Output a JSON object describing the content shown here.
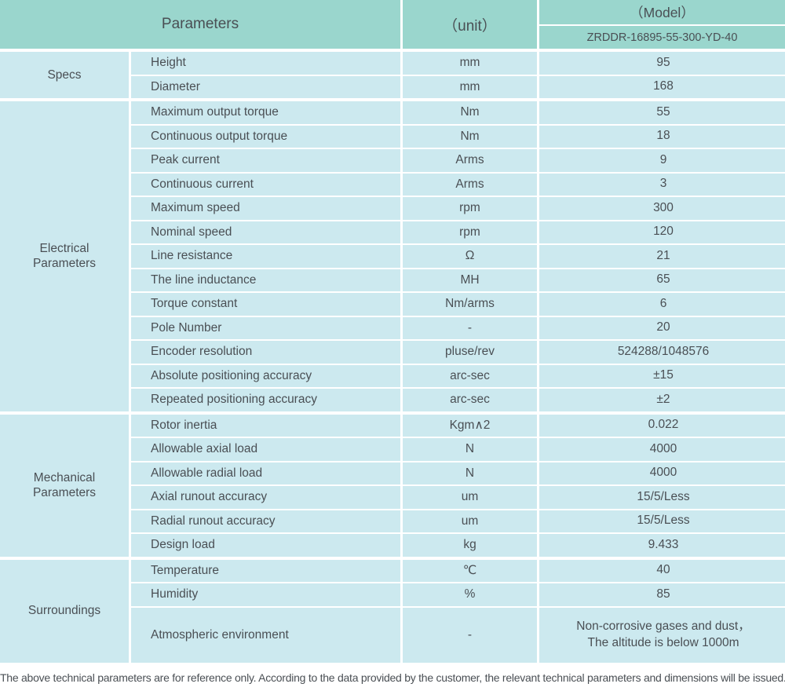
{
  "colors": {
    "header_teal": "#9ad6cd",
    "cell_blue": "#cce9ef",
    "text": "#4a4f54"
  },
  "table": {
    "header": {
      "parameters": "Parameters",
      "unit": "（unit）",
      "model_label": "（Model）",
      "model_value": "ZRDDR-16895-55-300-YD-40"
    },
    "sections": [
      {
        "label": "Specs",
        "rows": [
          {
            "parameter": "Height",
            "unit": "mm",
            "value": "95"
          },
          {
            "parameter": "Diameter",
            "unit": "mm",
            "value": "168"
          }
        ]
      },
      {
        "label": "Electrical\nParameters",
        "rows": [
          {
            "parameter": "Maximum output torque",
            "unit": "Nm",
            "value": "55"
          },
          {
            "parameter": "Continuous output torque",
            "unit": "Nm",
            "value": "18"
          },
          {
            "parameter": "Peak current",
            "unit": "Arms",
            "value": "9"
          },
          {
            "parameter": "Continuous current",
            "unit": "Arms",
            "value": "3"
          },
          {
            "parameter": "Maximum speed",
            "unit": "rpm",
            "value": "300"
          },
          {
            "parameter": "Nominal speed",
            "unit": "rpm",
            "value": "120"
          },
          {
            "parameter": "Line resistance",
            "unit": "Ω",
            "value": "21"
          },
          {
            "parameter": "The line inductance",
            "unit": "MH",
            "value": "65"
          },
          {
            "parameter": "Torque constant",
            "unit": "Nm/arms",
            "value": "6"
          },
          {
            "parameter": "Pole Number",
            "unit": "-",
            "value": "20"
          },
          {
            "parameter": "Encoder resolution",
            "unit": "pluse/rev",
            "value": "524288/1048576"
          },
          {
            "parameter": "Absolute positioning accuracy",
            "unit": "arc-sec",
            "value": "±15"
          },
          {
            "parameter": "Repeated positioning accuracy",
            "unit": "arc-sec",
            "value": "±2"
          }
        ]
      },
      {
        "label": "Mechanical\nParameters",
        "rows": [
          {
            "parameter": "Rotor inertia",
            "unit": "Kgm∧2",
            "value": "0.022"
          },
          {
            "parameter": "Allowable axial load",
            "unit": "N",
            "value": "4000"
          },
          {
            "parameter": "Allowable radial load",
            "unit": "N",
            "value": "4000"
          },
          {
            "parameter": "Axial runout accuracy",
            "unit": "um",
            "value": "15/5/Less"
          },
          {
            "parameter": "Radial runout accuracy",
            "unit": "um",
            "value": "15/5/Less"
          },
          {
            "parameter": "Design load",
            "unit": "kg",
            "value": "9.433"
          }
        ]
      },
      {
        "label": "Surroundings",
        "rows": [
          {
            "parameter": "Temperature",
            "unit": "℃",
            "value": "40"
          },
          {
            "parameter": "Humidity",
            "unit": "%",
            "value": "85"
          },
          {
            "parameter": "Atmospheric environment",
            "unit": "-",
            "value": "Non-corrosive gases and dust，\nThe altitude is below 1000m",
            "tall": true
          }
        ]
      }
    ]
  },
  "footer": {
    "note": "The above technical parameters are for reference only. According to the data provided by the customer, the relevant technical parameters and dimensions will be issued."
  }
}
